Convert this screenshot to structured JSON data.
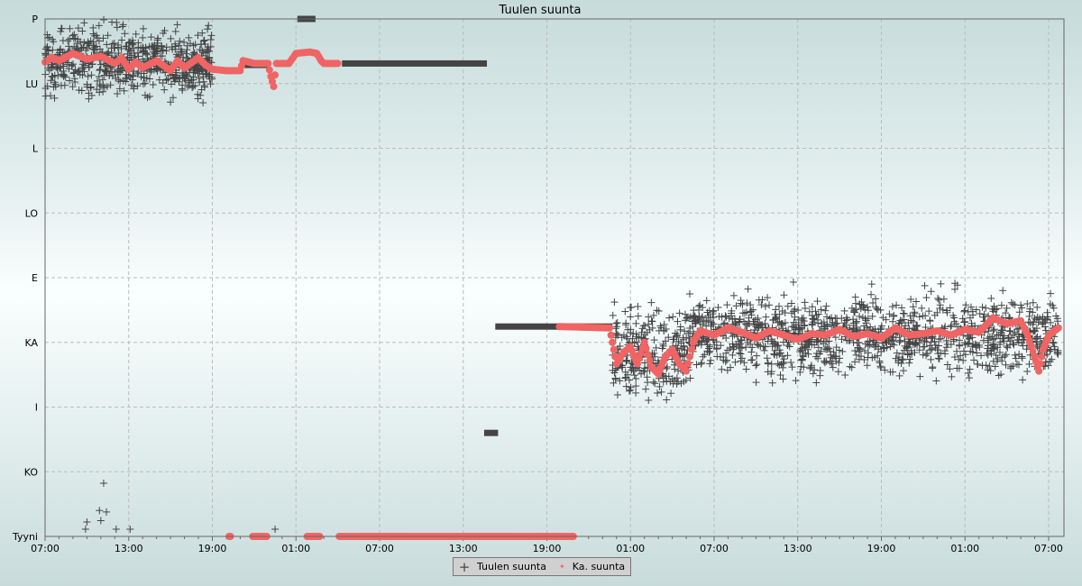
{
  "chart_data": {
    "type": "scatter",
    "title": "Tuulen suunta",
    "xlabel": "",
    "ylabel": "",
    "x_unit": "hours since 07:00 (day 1)",
    "xlim": [
      0,
      73.1
    ],
    "ylim": [
      0,
      360
    ],
    "grid": true,
    "legend_placement": "bottom-center",
    "x_ticks": [
      {
        "h": 0,
        "label": "07:00"
      },
      {
        "h": 6,
        "label": "13:00"
      },
      {
        "h": 12,
        "label": "19:00"
      },
      {
        "h": 18,
        "label": "01:00"
      },
      {
        "h": 24,
        "label": "07:00"
      },
      {
        "h": 30,
        "label": "13:00"
      },
      {
        "h": 36,
        "label": "19:00"
      },
      {
        "h": 42,
        "label": "01:00"
      },
      {
        "h": 48,
        "label": "07:00"
      },
      {
        "h": 54,
        "label": "13:00"
      },
      {
        "h": 60,
        "label": "19:00"
      },
      {
        "h": 66,
        "label": "01:00"
      },
      {
        "h": 72,
        "label": "07:00"
      }
    ],
    "y_ticks": [
      {
        "deg": 360,
        "label": "P"
      },
      {
        "deg": 315,
        "label": "LU"
      },
      {
        "deg": 270,
        "label": "L"
      },
      {
        "deg": 225,
        "label": "LO"
      },
      {
        "deg": 180,
        "label": "E"
      },
      {
        "deg": 135,
        "label": "KA"
      },
      {
        "deg": 90,
        "label": "I"
      },
      {
        "deg": 45,
        "label": "KO"
      },
      {
        "deg": 0,
        "label": "Tyyni"
      }
    ],
    "series": [
      {
        "name": "Tuulen suunta",
        "marker": "cross",
        "color": "#444444",
        "clouds": [
          {
            "from": 0,
            "to": 12,
            "center": 330,
            "spread": 22,
            "count": 650
          },
          {
            "from": 40.7,
            "to": 46,
            "center": 128,
            "spread": 28,
            "count": 260
          },
          {
            "from": 46,
            "to": 72.7,
            "center": 140,
            "spread": 25,
            "count": 1250
          }
        ],
        "dense_runs": [
          {
            "from": 14.2,
            "to": 16.0,
            "deg": 328
          },
          {
            "from": 18.1,
            "to": 19.4,
            "deg": 360
          },
          {
            "from": 21.3,
            "to": 31.7,
            "deg": 329
          },
          {
            "from": 31.5,
            "to": 32.5,
            "deg": 72
          },
          {
            "from": 32.3,
            "to": 40.7,
            "deg": 146
          }
        ],
        "outliers": [
          [
            2.9,
            5
          ],
          [
            3.0,
            10
          ],
          [
            3.9,
            18
          ],
          [
            4.0,
            11
          ],
          [
            4.2,
            37
          ],
          [
            4.4,
            17
          ],
          [
            5.1,
            5
          ],
          [
            6.1,
            5
          ],
          [
            16.5,
            5
          ]
        ]
      },
      {
        "name": "Ka. suunta",
        "marker": "dot",
        "color": "#f06464",
        "segments": [
          [
            [
              0,
              330
            ],
            [
              0.5,
              333
            ],
            [
              1,
              331
            ],
            [
              2,
              336
            ],
            [
              3,
              332
            ],
            [
              4,
              334
            ],
            [
              5,
              329
            ],
            [
              5.5,
              333
            ],
            [
              6,
              325
            ],
            [
              6.5,
              330
            ],
            [
              7,
              326
            ],
            [
              8,
              331
            ],
            [
              9,
              324
            ],
            [
              9.5,
              331
            ],
            [
              10,
              326
            ],
            [
              11,
              333
            ],
            [
              11.5,
              328
            ],
            [
              12,
              325
            ],
            [
              13,
              324
            ],
            [
              14,
              324
            ],
            [
              14.2,
              331
            ],
            [
              15,
              329
            ],
            [
              16,
              329
            ],
            [
              16.2,
              320
            ],
            [
              16.4,
              313
            ],
            [
              16.6,
              329
            ],
            [
              17,
              329
            ],
            [
              17.5,
              329
            ],
            [
              18,
              336
            ],
            [
              19,
              337
            ],
            [
              19.5,
              336
            ],
            [
              19.8,
              331
            ],
            [
              20,
              329
            ],
            [
              21,
              329
            ]
          ],
          [
            [
              13.2,
              0
            ],
            [
              13.3,
              0
            ]
          ],
          [
            [
              14.9,
              0
            ],
            [
              15.9,
              0
            ]
          ],
          [
            [
              18.8,
              0
            ],
            [
              19.7,
              0
            ]
          ],
          [
            [
              21.1,
              0
            ],
            [
              37.9,
              0
            ]
          ],
          [
            [
              36.9,
              146
            ],
            [
              40.5,
              145
            ],
            [
              40.8,
              130
            ],
            [
              41,
              120
            ],
            [
              41.5,
              128
            ],
            [
              42,
              132
            ],
            [
              42.5,
              120
            ],
            [
              43,
              135
            ],
            [
              43.5,
              118
            ],
            [
              44,
              113
            ],
            [
              44.5,
              125
            ],
            [
              45,
              130
            ],
            [
              45.5,
              120
            ],
            [
              46,
              115
            ],
            [
              46.5,
              135
            ],
            [
              47,
              143
            ],
            [
              48,
              140
            ],
            [
              49,
              145
            ],
            [
              50,
              142
            ],
            [
              51,
              138
            ],
            [
              52,
              143
            ],
            [
              53,
              140
            ],
            [
              54,
              137
            ],
            [
              55,
              141
            ],
            [
              56,
              140
            ],
            [
              57,
              144
            ],
            [
              58,
              139
            ],
            [
              59,
              141
            ],
            [
              60,
              138
            ],
            [
              61,
              145
            ],
            [
              62,
              140
            ],
            [
              63,
              141
            ],
            [
              64,
              143
            ],
            [
              65,
              140
            ],
            [
              66,
              144
            ],
            [
              67,
              142
            ],
            [
              68,
              152
            ],
            [
              69,
              148
            ],
            [
              70,
              150
            ],
            [
              70.5,
              140
            ],
            [
              71,
              125
            ],
            [
              71.3,
              115
            ],
            [
              71.6,
              130
            ],
            [
              72,
              140
            ],
            [
              72.7,
              145
            ]
          ]
        ]
      }
    ]
  },
  "legend": {
    "items": [
      {
        "label": "Tuulen suunta",
        "symbol": "+"
      },
      {
        "label": "Ka. suunta",
        "symbol": "✦"
      }
    ]
  }
}
